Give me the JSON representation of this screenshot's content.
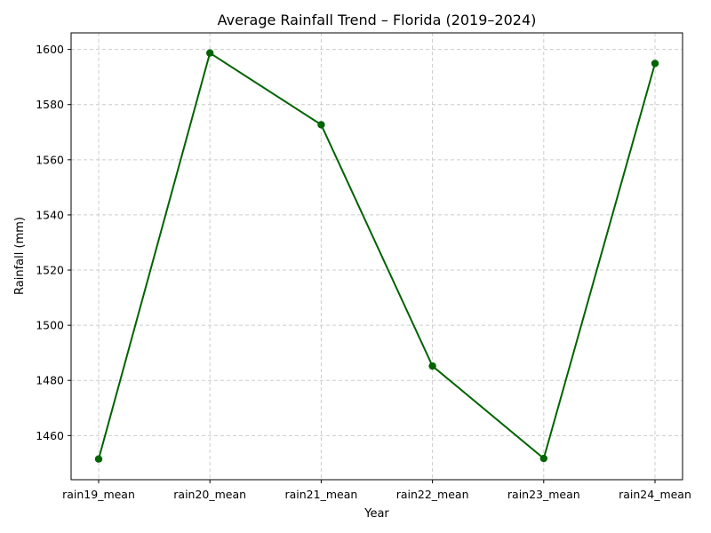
{
  "chart_data": {
    "type": "line",
    "title": "Average Rainfall Trend – Florida (2019–2024)",
    "xlabel": "Year",
    "ylabel": "Rainfall (mm)",
    "categories": [
      "rain19_mean",
      "rain20_mean",
      "rain21_mean",
      "rain22_mean",
      "rain23_mean",
      "rain24_mean"
    ],
    "series": [
      {
        "values": [
          1451.5,
          1598.7,
          1572.7,
          1485.2,
          1451.7,
          1594.9
        ]
      }
    ],
    "ylim": [
      1444,
      1606
    ],
    "yticks": [
      1460,
      1480,
      1500,
      1520,
      1540,
      1560,
      1580,
      1600
    ],
    "grid": true,
    "line_color": "#006400",
    "marker": "circle"
  }
}
